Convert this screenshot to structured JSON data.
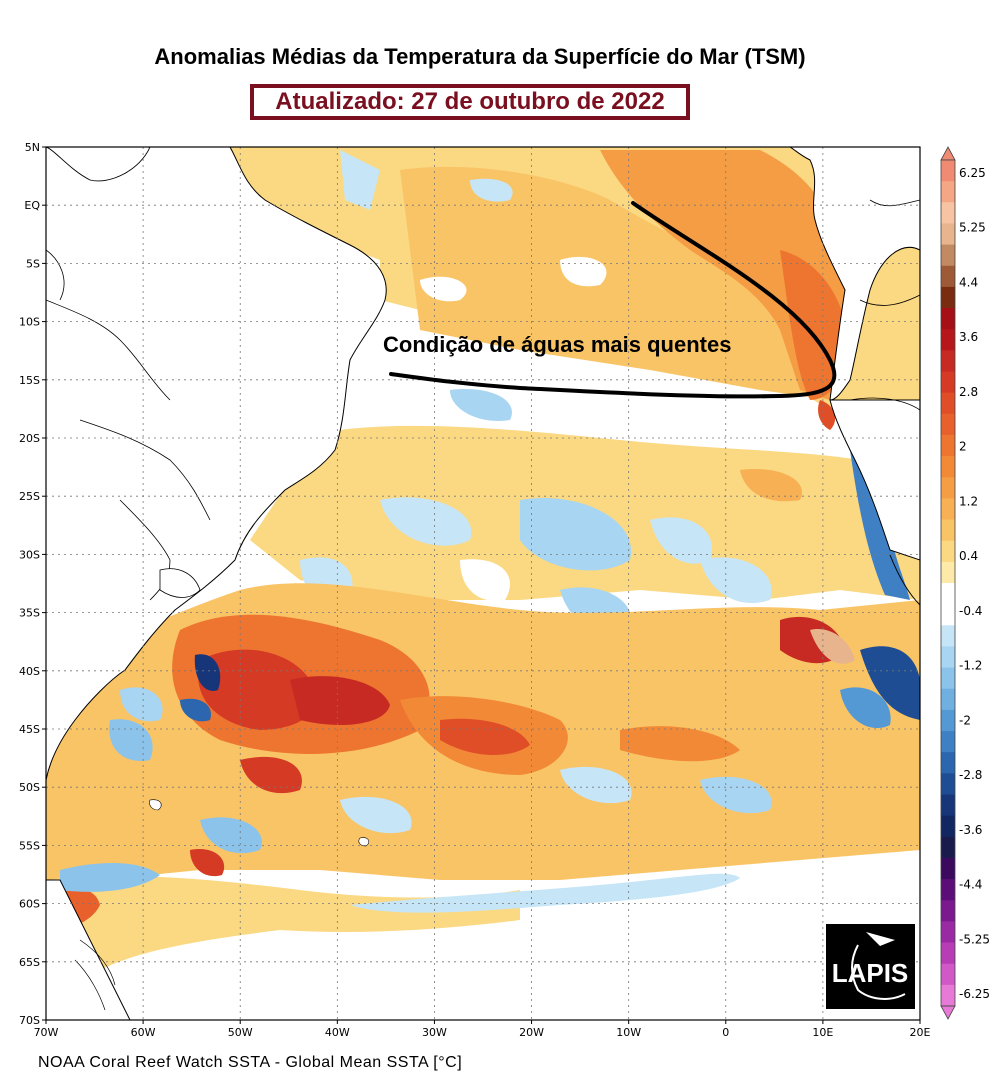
{
  "title": "Anomalias Médias da Temperatura da Superfície do Mar  (TSM)",
  "updated": "Atualizado: 27 de outubro de 2022",
  "annotation": "Condição de águas mais quentes",
  "footer": "NOAA Coral Reef Watch SSTA - Global Mean SSTA [°C]",
  "logo_text": "LAPIS",
  "map": {
    "region": "South Atlantic",
    "lon_range": [
      -70,
      20
    ],
    "lat_range": [
      -70,
      5
    ],
    "lat_ticks": [
      "5N",
      "EQ",
      "5S",
      "10S",
      "15S",
      "20S",
      "25S",
      "30S",
      "35S",
      "40S",
      "45S",
      "50S",
      "55S",
      "60S",
      "65S",
      "70S"
    ],
    "lon_ticks": [
      "70W",
      "60W",
      "50W",
      "40W",
      "30W",
      "20W",
      "10W",
      "0",
      "10E",
      "20E"
    ],
    "grid": "dotted"
  },
  "colorbar": {
    "labels": [
      "6.25",
      "5.25",
      "4.4",
      "3.6",
      "2.8",
      "2",
      "1.2",
      "0.4",
      "-0.4",
      "-1.2",
      "-2",
      "-2.8",
      "-3.6",
      "-4.4",
      "-5.25",
      "-6.25"
    ],
    "colors": [
      "#f08a73",
      "#f5a785",
      "#f7c4a3",
      "#e7b48e",
      "#c18a62",
      "#9e5a36",
      "#7a2c10",
      "#a50f15",
      "#b5171b",
      "#c62a22",
      "#d53a25",
      "#e04e28",
      "#e8612c",
      "#ee7530",
      "#f28937",
      "#f59d44",
      "#f7b053",
      "#f9c466",
      "#fbd882",
      "#fdeaa8",
      "#ffffff",
      "#ffffff",
      "#c6e6f7",
      "#a8d5f1",
      "#8cc3ea",
      "#6fb0e1",
      "#5599d4",
      "#3f80c4",
      "#2c66ae",
      "#1f4d94",
      "#17367a",
      "#122661",
      "#1a1a4d",
      "#3b0a5e",
      "#5c0e78",
      "#7a1a8e",
      "#9a2aa3",
      "#b73cb5",
      "#d158c6",
      "#e77ad6"
    ]
  }
}
